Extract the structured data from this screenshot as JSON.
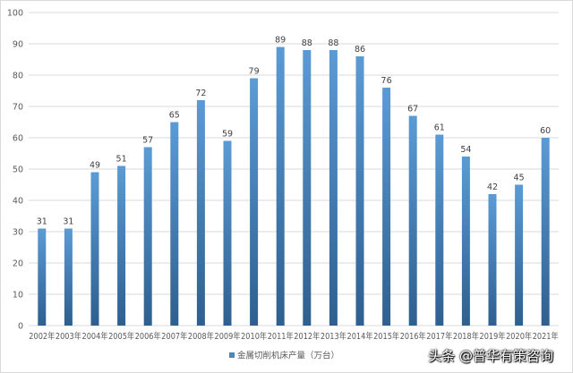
{
  "chart_data": {
    "type": "bar",
    "categories": [
      "2002年",
      "2003年",
      "2004年",
      "2005年",
      "2006年",
      "2007年",
      "2008年",
      "2009年",
      "2010年",
      "2011年",
      "2012年",
      "2013年",
      "2014年",
      "2015年",
      "2016年",
      "2017年",
      "2018年",
      "2019年",
      "2020年",
      "2021年"
    ],
    "series": [
      {
        "name": "金属切削机床产量（万台）",
        "values": [
          31,
          31,
          49,
          51,
          57,
          65,
          72,
          59,
          79,
          89,
          88,
          88,
          86,
          76,
          67,
          61,
          54,
          42,
          45,
          60
        ]
      }
    ],
    "data_labels": [
      "31",
      "31",
      "49",
      "51",
      "57",
      "65",
      "72",
      "59",
      "79",
      "89",
      "88",
      "88",
      "86",
      "76",
      "67",
      "61",
      "54",
      "42",
      "45",
      "60"
    ],
    "ylim": [
      0,
      100
    ],
    "yticks": [
      "0",
      "10",
      "20",
      "30",
      "40",
      "50",
      "60",
      "70",
      "80",
      "90",
      "100"
    ],
    "grid": true,
    "legend_position": "bottom-center",
    "colors": {
      "bar_top": "#5b9bd5",
      "bar_bottom": "#2e5f8f",
      "grid": "#d9d9d9",
      "legend_swatch": "#4a86c0"
    }
  },
  "watermark": "头条 @普华有策咨询"
}
